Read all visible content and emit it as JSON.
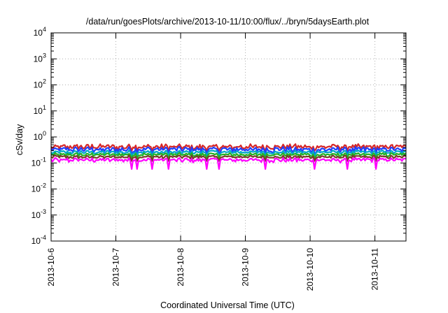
{
  "chart_data": {
    "type": "line",
    "title": "/data/run/goesPlots/archive/2013-10-11/10:00/flux/../bryn/5daysEarth.plot",
    "xlabel": "Coordinated Universal Time (UTC)",
    "ylabel": "cSv/day",
    "y_scale": "log",
    "ylim_exponents": [
      -4,
      4
    ],
    "y_tick_labels": [
      {
        "base": "10",
        "exp": "4"
      },
      {
        "base": "10",
        "exp": "3"
      },
      {
        "base": "10",
        "exp": "2"
      },
      {
        "base": "10",
        "exp": "1"
      },
      {
        "base": "10",
        "exp": "0"
      },
      {
        "base": "10",
        "exp": "-1"
      },
      {
        "base": "10",
        "exp": "-2"
      },
      {
        "base": "10",
        "exp": "-3"
      },
      {
        "base": "10",
        "exp": "-4"
      }
    ],
    "x_tick_labels": [
      "2013-10-6",
      "2013-10-7",
      "2013-10-8",
      "2013-10-9",
      "2013-10-10",
      "2013-10-11"
    ],
    "xlim_days": [
      0,
      5.48
    ],
    "grid": true,
    "legend": "none",
    "series": [
      {
        "color": "#d62728",
        "base": 0.42,
        "spread": 0.12
      },
      {
        "color": "#1f3fff",
        "base": 0.33,
        "spread": 0.1
      },
      {
        "color": "#00a8c8",
        "base": 0.26,
        "spread": 0.05
      },
      {
        "color": "#22b022",
        "base": 0.21,
        "spread": 0.04
      },
      {
        "color": "#7a3a2a",
        "base": 0.17,
        "spread": 0.03
      },
      {
        "color": "#ff00ff",
        "base": 0.13,
        "spread": 0.03
      }
    ]
  }
}
